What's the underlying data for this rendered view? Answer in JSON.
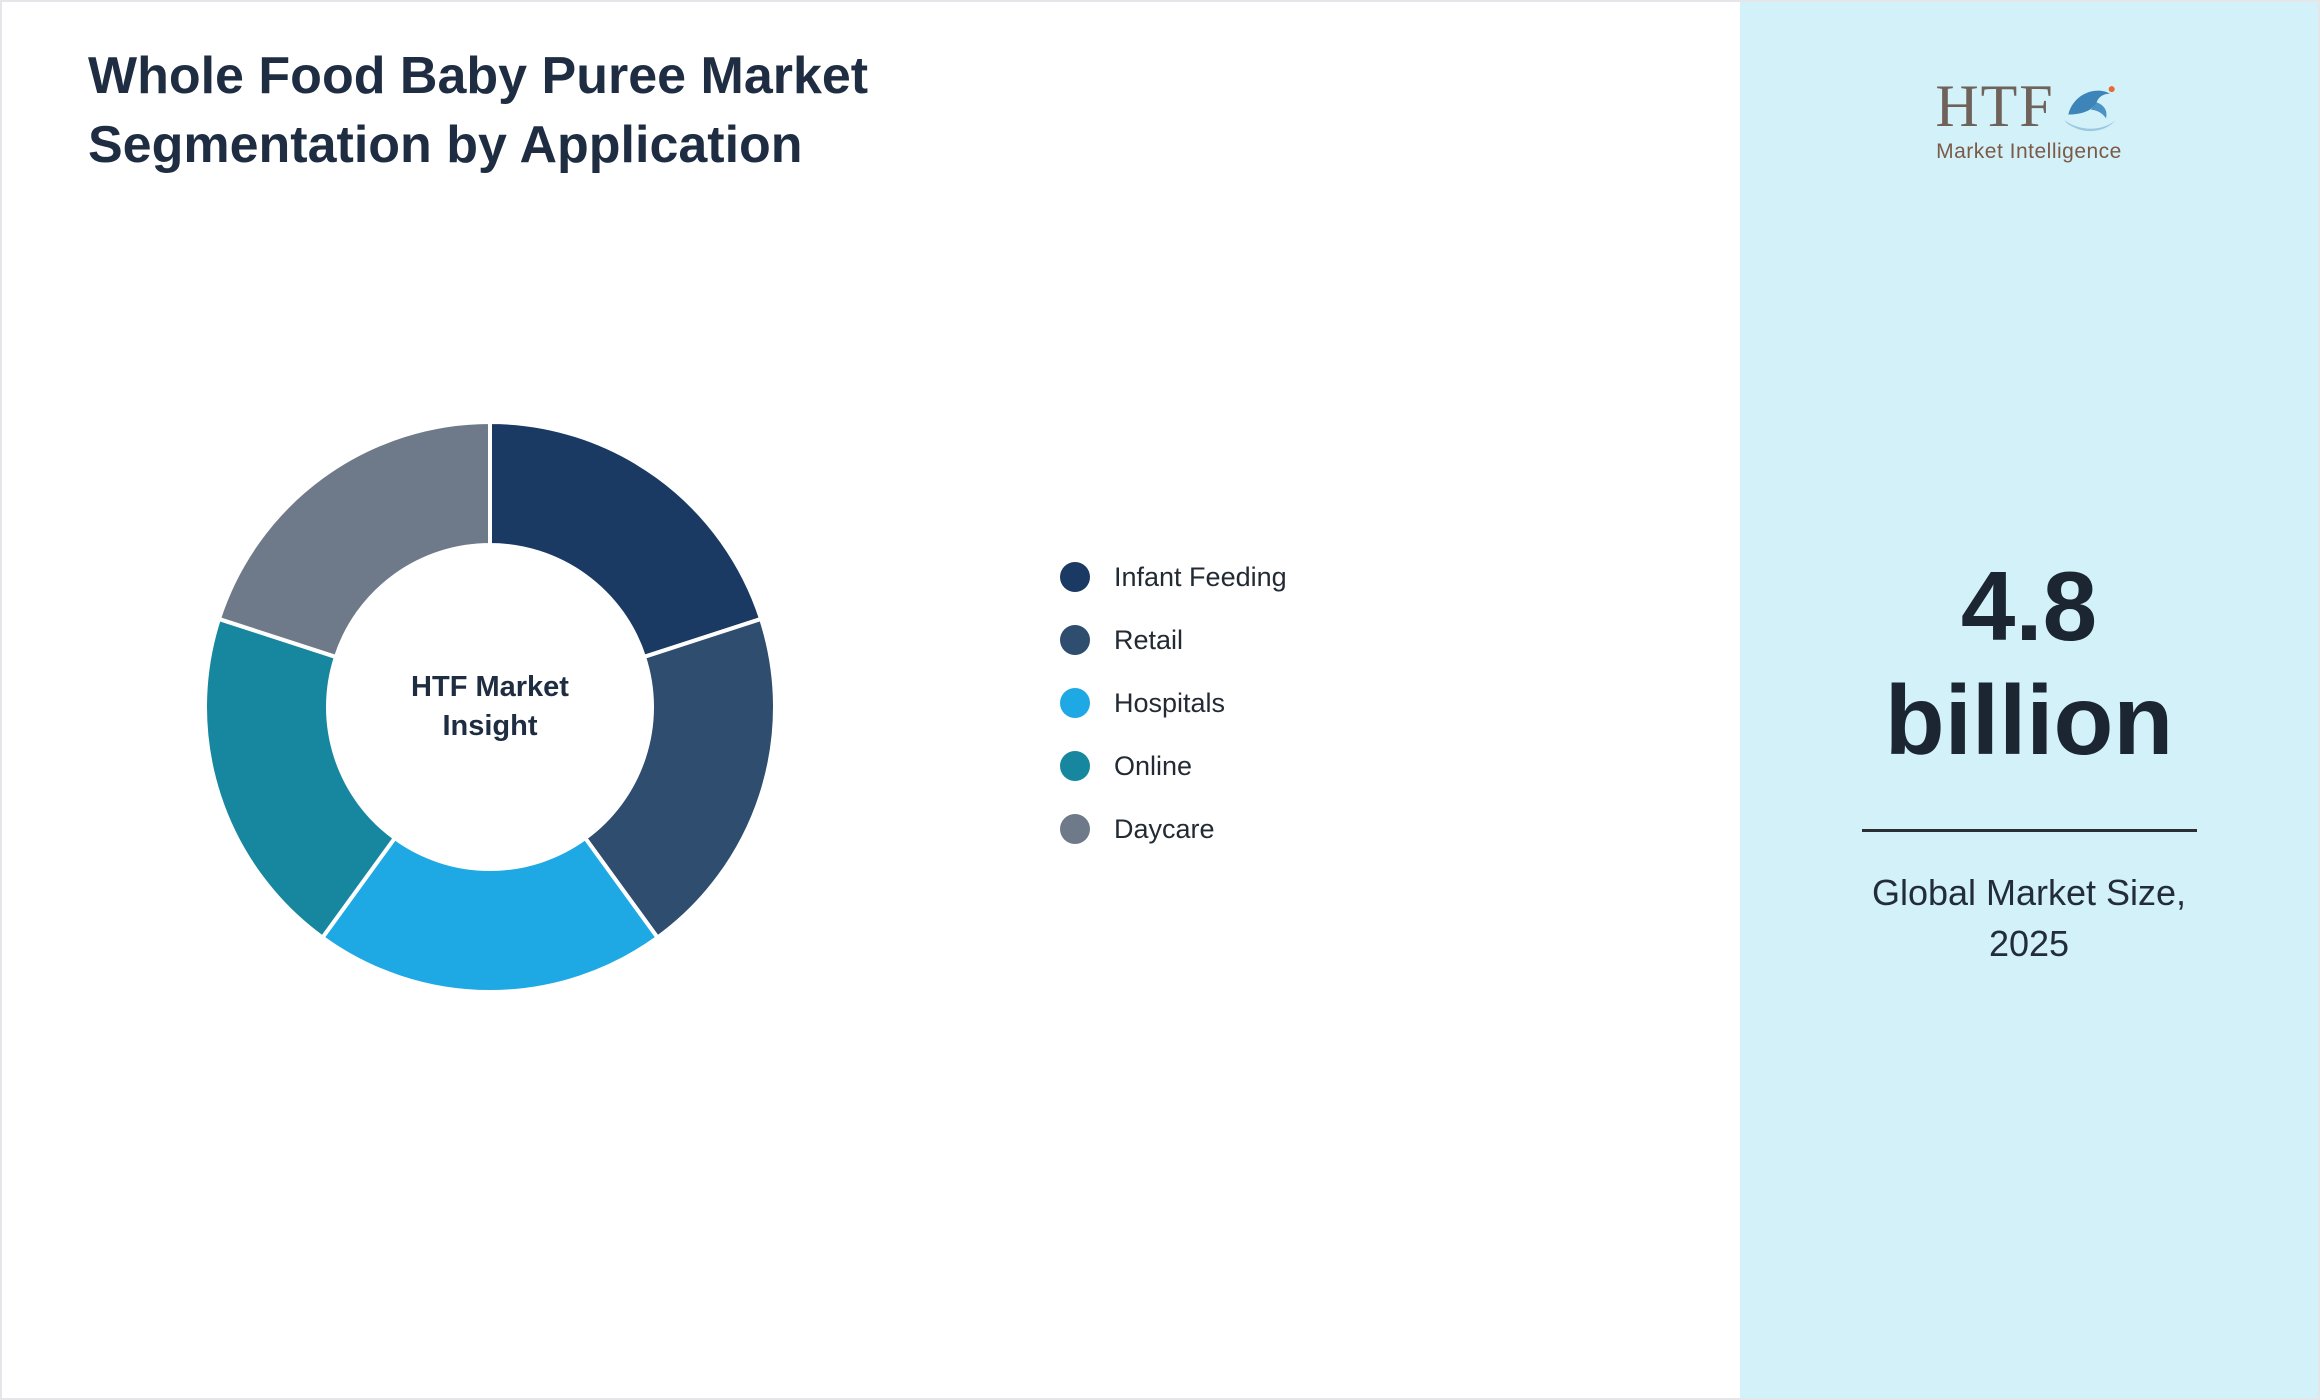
{
  "header": {
    "title_lines": [
      "Whole Food Baby Puree Market",
      "Segmentation by Application"
    ]
  },
  "chart_data": {
    "type": "pie",
    "donut": true,
    "center_label": "HTF Market Insight",
    "legend_position": "right",
    "segments": [
      {
        "label": "Infant Feeding",
        "value": 20,
        "color": "#1b3a63"
      },
      {
        "label": "Retail",
        "value": 20,
        "color": "#2f4d6e"
      },
      {
        "label": "Hospitals",
        "value": 20,
        "color": "#1fa9e4"
      },
      {
        "label": "Online",
        "value": 20,
        "color": "#17879f"
      },
      {
        "label": "Daycare",
        "value": 20,
        "color": "#6e7a89"
      }
    ]
  },
  "sidebar": {
    "background": "#d2f1f9",
    "logo": {
      "text": "HTF",
      "subtext": "Market Intelligence",
      "icon": "dolphin-splash-icon"
    },
    "market_size_line1": "4.8",
    "market_size_line2": "billion",
    "market_size_caption": "Global Market Size, 2025"
  }
}
